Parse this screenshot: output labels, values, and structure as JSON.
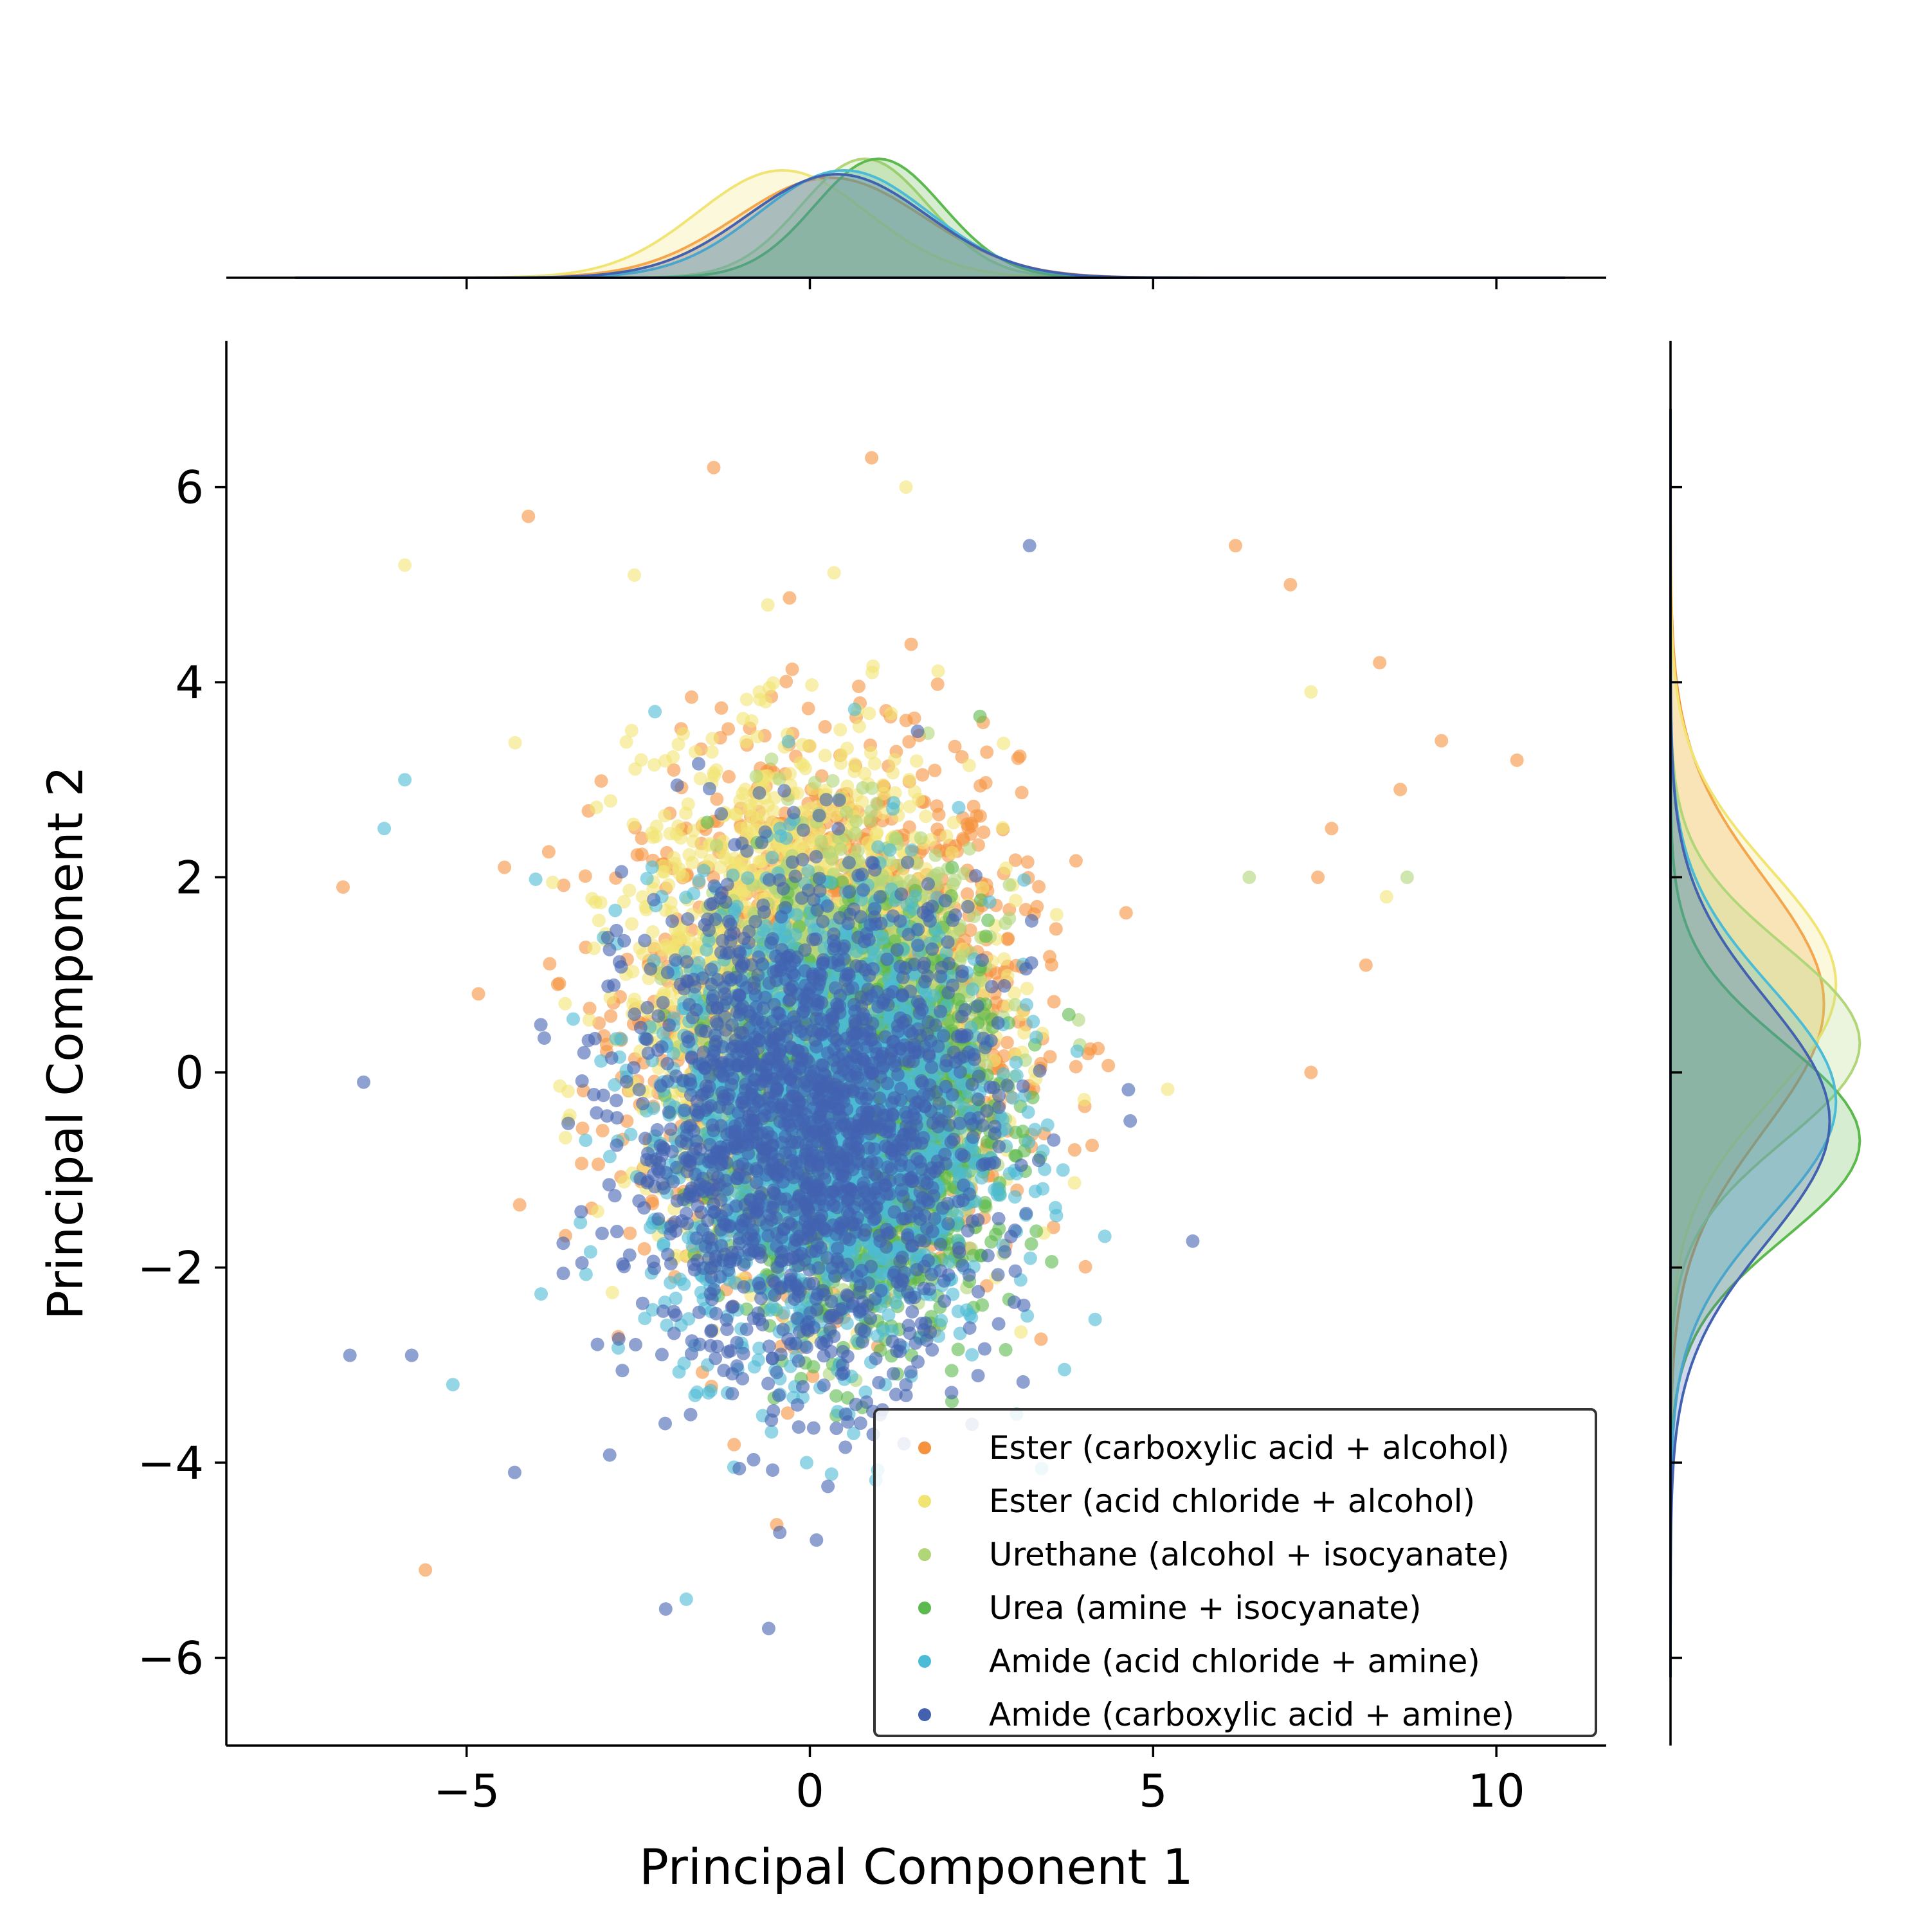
{
  "chart_data": {
    "type": "scatter",
    "title": "",
    "xlabel": "Principal Component 1",
    "ylabel": "Principal Component 2",
    "xlim": [
      -8.5,
      11.6
    ],
    "ylim": [
      -6.9,
      7.5
    ],
    "x_ticks": [
      -5,
      0,
      5,
      10
    ],
    "y_ticks": [
      -6,
      -4,
      -2,
      0,
      2,
      4,
      6
    ],
    "x_tick_labels": [
      "−5",
      "0",
      "5",
      "10"
    ],
    "y_tick_labels": [
      "−6",
      "−4",
      "−2",
      "0",
      "2",
      "4",
      "6"
    ],
    "grid": false,
    "legend_position": "bottom-right",
    "marginal_plots": "kde",
    "series": [
      {
        "name": "Ester (carboxylic acid + alcohol)",
        "color": "#f5923e",
        "center": [
          0.3,
          0.6
        ],
        "spread": [
          2.2,
          2.1
        ],
        "marginal_x_peak": 0.3,
        "marginal_y_peak": 0.7
      },
      {
        "name": "Ester (acid chloride + alcohol)",
        "color": "#f1e473",
        "center": [
          -0.1,
          0.9
        ],
        "spread": [
          2.0,
          1.9
        ],
        "marginal_x_peak": -0.4,
        "marginal_y_peak": 0.9
      },
      {
        "name": "Urethane (alcohol + isocyanate)",
        "color": "#b1d67a",
        "center": [
          0.6,
          0.2
        ],
        "spread": [
          1.5,
          1.6
        ],
        "marginal_x_peak": 0.8,
        "marginal_y_peak": 0.3
      },
      {
        "name": "Urea (amine + isocyanate)",
        "color": "#5cb94d",
        "center": [
          0.7,
          -0.6
        ],
        "spread": [
          1.5,
          1.6
        ],
        "marginal_x_peak": 1.0,
        "marginal_y_peak": -0.7
      },
      {
        "name": "Amide (acid chloride + amine)",
        "color": "#4cbbd5",
        "center": [
          0.2,
          -0.5
        ],
        "spread": [
          2.0,
          1.9
        ],
        "marginal_x_peak": 0.5,
        "marginal_y_peak": -0.3
      },
      {
        "name": "Amide (carboxylic acid + amine)",
        "color": "#4262b0",
        "center": [
          0.0,
          -0.6
        ],
        "spread": [
          2.1,
          2.0
        ],
        "marginal_x_peak": 0.4,
        "marginal_y_peak": -0.5
      }
    ],
    "outlier_points": [
      {
        "series": 0,
        "x": 10.3,
        "y": 3.2
      },
      {
        "series": 0,
        "x": 9.2,
        "y": 3.4
      },
      {
        "series": 0,
        "x": 8.6,
        "y": 2.9
      },
      {
        "series": 0,
        "x": 8.3,
        "y": 4.2
      },
      {
        "series": 0,
        "x": 8.1,
        "y": 1.1
      },
      {
        "series": 0,
        "x": 7.3,
        "y": 0.0
      },
      {
        "series": 0,
        "x": 7.6,
        "y": 2.5
      },
      {
        "series": 0,
        "x": 7.0,
        "y": 5.0
      },
      {
        "series": 0,
        "x": 7.4,
        "y": 2.0
      },
      {
        "series": 0,
        "x": 6.2,
        "y": 5.4
      },
      {
        "series": 0,
        "x": 0.9,
        "y": 6.3
      },
      {
        "series": 0,
        "x": -1.4,
        "y": 6.2
      },
      {
        "series": 0,
        "x": -4.1,
        "y": 5.7
      },
      {
        "series": 0,
        "x": -6.8,
        "y": 1.9
      },
      {
        "series": 0,
        "x": -5.6,
        "y": -5.1
      },
      {
        "series": 1,
        "x": -5.9,
        "y": 5.2
      },
      {
        "series": 1,
        "x": 1.4,
        "y": 6.0
      },
      {
        "series": 1,
        "x": 8.4,
        "y": 1.8
      },
      {
        "series": 1,
        "x": 7.3,
        "y": 3.9
      },
      {
        "series": 2,
        "x": 8.7,
        "y": 2.0
      },
      {
        "series": 2,
        "x": 6.4,
        "y": 2.0
      },
      {
        "series": 4,
        "x": -5.9,
        "y": 3.0
      },
      {
        "series": 4,
        "x": -6.2,
        "y": 2.5
      },
      {
        "series": 4,
        "x": -5.2,
        "y": -3.2
      },
      {
        "series": 4,
        "x": -1.8,
        "y": -5.4
      },
      {
        "series": 5,
        "x": -6.7,
        "y": -2.9
      },
      {
        "series": 5,
        "x": -5.8,
        "y": -2.9
      },
      {
        "series": 5,
        "x": -6.5,
        "y": -0.1
      },
      {
        "series": 5,
        "x": -0.6,
        "y": -5.7
      },
      {
        "series": 5,
        "x": -2.1,
        "y": -5.5
      },
      {
        "series": 5,
        "x": 3.2,
        "y": 5.4
      },
      {
        "series": 5,
        "x": -4.3,
        "y": -4.1
      }
    ]
  }
}
